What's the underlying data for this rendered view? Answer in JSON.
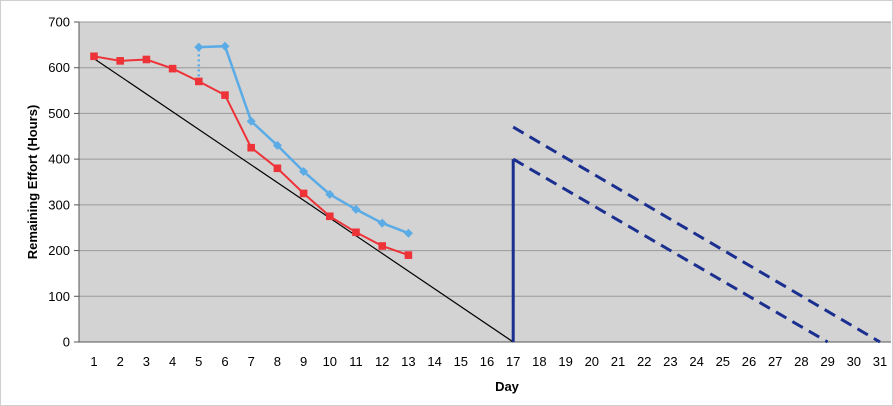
{
  "chart_data": {
    "type": "line",
    "title": "",
    "xlabel": "Day",
    "ylabel": "Remaining Effort (Hours)",
    "xlim": [
      1,
      31
    ],
    "ylim": [
      0,
      700
    ],
    "y_ticks": [
      0,
      100,
      200,
      300,
      400,
      500,
      600,
      700
    ],
    "x_ticks": [
      1,
      2,
      3,
      4,
      5,
      6,
      7,
      8,
      9,
      10,
      11,
      12,
      13,
      14,
      15,
      16,
      17,
      18,
      19,
      20,
      21,
      22,
      23,
      24,
      25,
      26,
      27,
      28,
      29,
      30,
      31
    ],
    "grid": "horizontal",
    "background": "#d3d3d3",
    "series": [
      {
        "style": "line-square-markers",
        "color": "#ee3338",
        "x": [
          1,
          2,
          3,
          4,
          5,
          6,
          7,
          8,
          9,
          10,
          11,
          12,
          13
        ],
        "y": [
          625,
          615,
          618,
          598,
          570,
          540,
          425,
          380,
          325,
          275,
          240,
          210,
          190
        ]
      },
      {
        "style": "line-diamond-markers",
        "color": "#5aabe6",
        "x": [
          5,
          6,
          7,
          8,
          9,
          10,
          11,
          12,
          13
        ],
        "y": [
          645,
          647,
          483,
          430,
          373,
          323,
          290,
          260,
          238
        ]
      },
      {
        "style": "dotted-connector",
        "color": "#5aabe6",
        "x": [
          5,
          5
        ],
        "y": [
          570,
          645
        ]
      },
      {
        "style": "ideal-line",
        "color": "#000000",
        "x": [
          1,
          17
        ],
        "y": [
          620,
          0
        ]
      },
      {
        "style": "vertical-line",
        "color": "#1a2f8f",
        "x": [
          17,
          17
        ],
        "y": [
          0,
          400
        ]
      },
      {
        "style": "dashed-line",
        "color": "#1a2f8f",
        "x": [
          17,
          29
        ],
        "y": [
          400,
          0
        ]
      },
      {
        "style": "dashed-line",
        "color": "#1a2f8f",
        "x": [
          17,
          31
        ],
        "y": [
          470,
          0
        ]
      }
    ]
  }
}
